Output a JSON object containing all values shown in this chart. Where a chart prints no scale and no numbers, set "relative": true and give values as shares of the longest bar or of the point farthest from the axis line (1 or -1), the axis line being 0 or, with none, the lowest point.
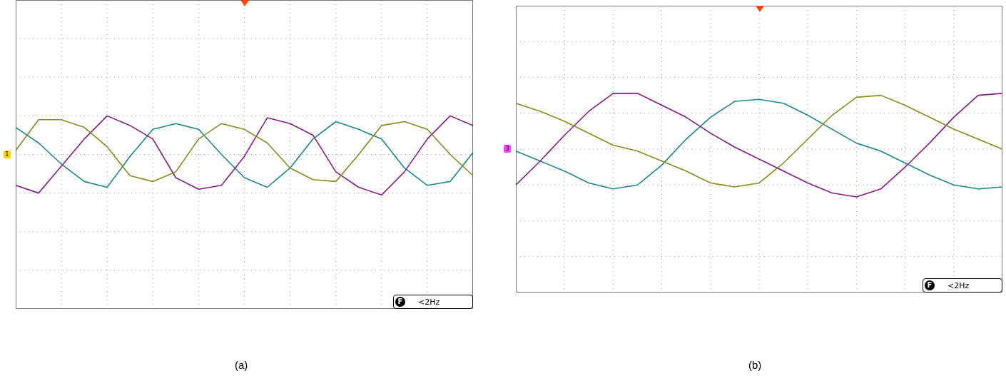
{
  "chart_data": [
    {
      "type": "line",
      "relative": true,
      "grid": true,
      "legend": false,
      "marker": "none",
      "line_style": "solid",
      "categories": [
        null,
        null,
        null,
        null,
        null,
        null,
        null,
        null,
        null,
        null,
        null,
        null,
        null,
        null,
        null,
        null,
        null,
        null,
        null,
        null,
        null
      ],
      "series": [
        {
          "color": "#8b8b1a",
          "values": [
            0.82,
            0.98,
            0.98,
            0.94,
            0.84,
            0.69,
            0.66,
            0.71,
            0.88,
            0.96,
            0.93,
            0.86,
            0.73,
            0.67,
            0.66,
            0.8,
            0.95,
            0.97,
            0.93,
            0.8,
            0.69
          ]
        },
        {
          "color": "#8a1a8a",
          "values": [
            0.64,
            0.6,
            0.74,
            0.88,
            1.0,
            0.95,
            0.88,
            0.68,
            0.62,
            0.64,
            0.79,
            0.99,
            0.96,
            0.9,
            0.71,
            0.63,
            0.59,
            0.71,
            0.88,
            1.0,
            0.95
          ]
        },
        {
          "color": "#1a8a8a",
          "values": [
            0.94,
            0.86,
            0.75,
            0.66,
            0.63,
            0.79,
            0.93,
            0.96,
            0.93,
            0.8,
            0.68,
            0.63,
            0.73,
            0.88,
            0.97,
            0.93,
            0.88,
            0.73,
            0.64,
            0.66,
            0.81
          ]
        }
      ],
      "annotations": [
        "1",
        "F",
        "<2Hz",
        "(a)"
      ]
    },
    {
      "type": "line",
      "relative": true,
      "grid": true,
      "legend": false,
      "marker": "none",
      "line_style": "solid",
      "categories": [
        null,
        null,
        null,
        null,
        null,
        null,
        null,
        null,
        null,
        null,
        null,
        null,
        null,
        null,
        null,
        null,
        null,
        null,
        null,
        null,
        null
      ],
      "series": [
        {
          "color": "#8b8b1a",
          "values": [
            0.95,
            0.91,
            0.86,
            0.8,
            0.74,
            0.71,
            0.66,
            0.61,
            0.55,
            0.53,
            0.55,
            0.65,
            0.77,
            0.89,
            0.98,
            0.99,
            0.94,
            0.88,
            0.82,
            0.77,
            0.72
          ]
        },
        {
          "color": "#8a1a8a",
          "values": [
            0.54,
            0.66,
            0.79,
            0.91,
            1.0,
            1.0,
            0.94,
            0.88,
            0.8,
            0.73,
            0.67,
            0.61,
            0.55,
            0.5,
            0.48,
            0.52,
            0.63,
            0.75,
            0.88,
            0.99,
            1
          ]
        },
        {
          "color": "#1a8a8a",
          "values": [
            0.71,
            0.66,
            0.61,
            0.55,
            0.52,
            0.54,
            0.64,
            0.77,
            0.88,
            0.96,
            0.97,
            0.95,
            0.89,
            0.82,
            0.75,
            0.71,
            0.65,
            0.59,
            0.54,
            0.52,
            0.53
          ]
        }
      ],
      "annotations": [
        "3",
        "F",
        "<2Hz",
        "(b)"
      ]
    }
  ]
}
